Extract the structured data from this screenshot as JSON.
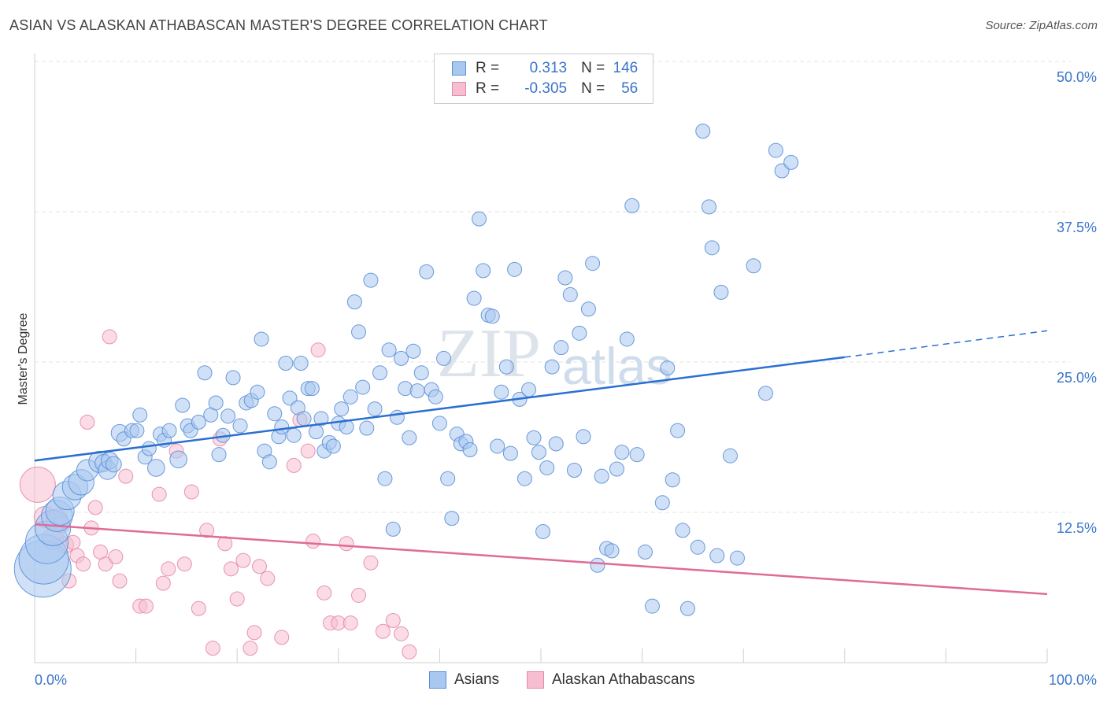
{
  "header": {
    "title": "ASIAN VS ALASKAN ATHABASCAN MASTER'S DEGREE CORRELATION CHART",
    "source": "Source: ZipAtlas.com"
  },
  "watermark": {
    "zip": "ZIP",
    "atlas": "atlas"
  },
  "legend": {
    "rows": [
      {
        "r_label": "R =",
        "r_value": "0.313",
        "n_label": "N =",
        "n_value": "146"
      },
      {
        "r_label": "R =",
        "r_value": "-0.305",
        "n_label": "N =",
        "n_value": "56"
      }
    ]
  },
  "chart_data": {
    "type": "scatter",
    "title": "ASIAN VS ALASKAN ATHABASCAN MASTER'S DEGREE CORRELATION CHART",
    "xlabel": "",
    "ylabel": "Master's Degree",
    "xlim": [
      0,
      100
    ],
    "ylim": [
      0,
      50
    ],
    "x_tick_labels": [
      "0.0%",
      "100.0%"
    ],
    "y_ticks": [
      12.5,
      25.0,
      37.5,
      50.0
    ],
    "y_tick_labels": [
      "12.5%",
      "25.0%",
      "37.5%",
      "50.0%"
    ],
    "grid": true,
    "legend_position": "top-center",
    "colors": {
      "asians_fill": "#a9c8f0",
      "asians_stroke": "#5b8fd6",
      "asians_line": "#2a6fd1",
      "alaskan_fill": "#f7bdd0",
      "alaskan_stroke": "#e589a7",
      "alaskan_line": "#e06a98",
      "axis_label": "#3a74c8"
    },
    "series": [
      {
        "name": "Asians",
        "r": 0.313,
        "n": 146,
        "trend": {
          "x": [
            0,
            80,
            100
          ],
          "y": [
            16.8,
            25.4,
            27.6
          ]
        },
        "points": [
          [
            0.8,
            7.8,
            4
          ],
          [
            0.9,
            8.6,
            3.5
          ],
          [
            1.2,
            10.0,
            3
          ],
          [
            1.8,
            11.2,
            2.5
          ],
          [
            2.2,
            12.2,
            2.2
          ],
          [
            2.5,
            12.6,
            2
          ],
          [
            3.2,
            13.9,
            2
          ],
          [
            4.0,
            14.6,
            1.8
          ],
          [
            4.6,
            15.0,
            1.8
          ],
          [
            5.2,
            16.0,
            1.5
          ],
          [
            6.4,
            16.7,
            1.5
          ],
          [
            6.8,
            16.6,
            1.2
          ],
          [
            7.2,
            16.0,
            1.3
          ],
          [
            7.4,
            16.8,
            1.2
          ],
          [
            7.8,
            16.5,
            1.1
          ],
          [
            8.4,
            19.1,
            1.2
          ],
          [
            8.8,
            18.6,
            1
          ],
          [
            9.6,
            19.3,
            1
          ],
          [
            10.1,
            19.3,
            1
          ],
          [
            10.4,
            20.6,
            1
          ],
          [
            10.9,
            17.1,
            1
          ],
          [
            11.3,
            17.8,
            1
          ],
          [
            12.0,
            16.2,
            1.2
          ],
          [
            12.4,
            19.0,
            1
          ],
          [
            12.8,
            18.5,
            1
          ],
          [
            13.3,
            19.3,
            1
          ],
          [
            14.2,
            16.9,
            1.2
          ],
          [
            14.6,
            21.4,
            1
          ],
          [
            15.1,
            19.7,
            1
          ],
          [
            15.4,
            19.3,
            1
          ],
          [
            16.2,
            20.0,
            1
          ],
          [
            16.8,
            24.1,
            1
          ],
          [
            17.4,
            20.6,
            1
          ],
          [
            17.9,
            21.6,
            1
          ],
          [
            18.2,
            17.3,
            1
          ],
          [
            18.6,
            18.9,
            1
          ],
          [
            19.1,
            20.5,
            1
          ],
          [
            19.6,
            23.7,
            1
          ],
          [
            20.3,
            19.7,
            1
          ],
          [
            20.9,
            21.6,
            1
          ],
          [
            21.4,
            21.8,
            1
          ],
          [
            22.0,
            22.5,
            1
          ],
          [
            22.4,
            26.9,
            1
          ],
          [
            22.7,
            17.6,
            1
          ],
          [
            23.2,
            16.7,
            1
          ],
          [
            23.7,
            20.7,
            1
          ],
          [
            24.1,
            18.8,
            1
          ],
          [
            24.4,
            19.6,
            1
          ],
          [
            24.8,
            24.9,
            1
          ],
          [
            25.2,
            22.0,
            1
          ],
          [
            25.6,
            18.9,
            1
          ],
          [
            26.0,
            21.2,
            1
          ],
          [
            26.3,
            24.9,
            1
          ],
          [
            26.6,
            20.3,
            1
          ],
          [
            27.0,
            22.8,
            1
          ],
          [
            27.4,
            22.8,
            1
          ],
          [
            27.8,
            19.2,
            1
          ],
          [
            28.3,
            20.3,
            1
          ],
          [
            28.6,
            17.6,
            1
          ],
          [
            29.1,
            18.3,
            1
          ],
          [
            29.5,
            18.0,
            1
          ],
          [
            30.0,
            19.9,
            1
          ],
          [
            30.3,
            21.1,
            1
          ],
          [
            30.8,
            19.6,
            1
          ],
          [
            31.2,
            22.1,
            1
          ],
          [
            31.6,
            30.0,
            1
          ],
          [
            32.0,
            27.5,
            1
          ],
          [
            32.4,
            22.9,
            1
          ],
          [
            32.8,
            19.5,
            1
          ],
          [
            33.2,
            31.8,
            1
          ],
          [
            33.6,
            21.1,
            1
          ],
          [
            34.1,
            24.1,
            1
          ],
          [
            34.6,
            15.3,
            1
          ],
          [
            35.0,
            26.0,
            1
          ],
          [
            35.4,
            11.1,
            1
          ],
          [
            35.8,
            20.4,
            1
          ],
          [
            36.2,
            25.3,
            1
          ],
          [
            36.6,
            22.8,
            1
          ],
          [
            37.0,
            18.7,
            1
          ],
          [
            37.4,
            25.9,
            1
          ],
          [
            37.8,
            22.6,
            1
          ],
          [
            38.2,
            24.1,
            1
          ],
          [
            38.7,
            32.5,
            1
          ],
          [
            39.2,
            22.7,
            1
          ],
          [
            39.6,
            22.1,
            1
          ],
          [
            40.0,
            19.9,
            1
          ],
          [
            40.4,
            25.3,
            1
          ],
          [
            40.8,
            15.3,
            1
          ],
          [
            41.2,
            12.0,
            1
          ],
          [
            41.7,
            19.0,
            1
          ],
          [
            42.1,
            18.2,
            1
          ],
          [
            42.6,
            18.4,
            1
          ],
          [
            43.0,
            17.7,
            1
          ],
          [
            43.4,
            30.3,
            1
          ],
          [
            43.9,
            36.9,
            1
          ],
          [
            44.3,
            32.6,
            1
          ],
          [
            44.8,
            28.9,
            1
          ],
          [
            45.2,
            28.8,
            1
          ],
          [
            45.7,
            18.0,
            1
          ],
          [
            46.1,
            22.5,
            1
          ],
          [
            46.6,
            24.6,
            1
          ],
          [
            47.0,
            17.4,
            1
          ],
          [
            47.4,
            32.7,
            1
          ],
          [
            47.9,
            21.9,
            1
          ],
          [
            48.4,
            15.3,
            1
          ],
          [
            48.8,
            22.7,
            1
          ],
          [
            49.3,
            18.7,
            1
          ],
          [
            49.8,
            17.5,
            1
          ],
          [
            50.2,
            10.9,
            1
          ],
          [
            50.6,
            16.2,
            1
          ],
          [
            51.1,
            24.6,
            1
          ],
          [
            51.5,
            18.2,
            1
          ],
          [
            52.0,
            26.2,
            1
          ],
          [
            52.4,
            32.0,
            1
          ],
          [
            52.9,
            30.6,
            1
          ],
          [
            53.3,
            16.0,
            1
          ],
          [
            53.8,
            27.4,
            1
          ],
          [
            54.2,
            18.8,
            1
          ],
          [
            54.7,
            29.4,
            1
          ],
          [
            55.1,
            33.2,
            1
          ],
          [
            55.6,
            8.1,
            1
          ],
          [
            56.0,
            15.5,
            1
          ],
          [
            56.5,
            9.5,
            1
          ],
          [
            57.0,
            9.3,
            1
          ],
          [
            57.5,
            16.1,
            1
          ],
          [
            58.0,
            17.5,
            1
          ],
          [
            58.5,
            26.9,
            1
          ],
          [
            59.0,
            38.0,
            1
          ],
          [
            59.5,
            17.3,
            1
          ],
          [
            60.3,
            9.2,
            1
          ],
          [
            61.0,
            4.7,
            1
          ],
          [
            62.0,
            13.3,
            1
          ],
          [
            62.5,
            24.5,
            1
          ],
          [
            63.0,
            15.2,
            1
          ],
          [
            63.5,
            19.3,
            1
          ],
          [
            64.0,
            11.0,
            1
          ],
          [
            64.5,
            4.5,
            1
          ],
          [
            65.5,
            9.6,
            1
          ],
          [
            66.0,
            44.2,
            1
          ],
          [
            66.6,
            37.9,
            1
          ],
          [
            66.9,
            34.5,
            1
          ],
          [
            67.4,
            8.9,
            1
          ],
          [
            67.8,
            30.8,
            1
          ],
          [
            68.7,
            17.2,
            1
          ],
          [
            69.4,
            8.7,
            1
          ],
          [
            71.0,
            33.0,
            1
          ],
          [
            72.2,
            22.4,
            1
          ],
          [
            73.2,
            42.6,
            1
          ],
          [
            73.8,
            40.9,
            1
          ],
          [
            74.7,
            41.6,
            1
          ]
        ]
      },
      {
        "name": "Alaskan Athabascans",
        "r": -0.305,
        "n": 56,
        "trend": {
          "x": [
            0,
            100
          ],
          "y": [
            11.5,
            5.7
          ]
        },
        "points": [
          [
            0.3,
            14.8,
            2.5
          ],
          [
            1.0,
            12.1,
            1.5
          ],
          [
            1.8,
            10.3,
            1.5
          ],
          [
            2.2,
            11.9,
            1.5
          ],
          [
            2.6,
            11.5,
            1.2
          ],
          [
            3.0,
            9.8,
            1.2
          ],
          [
            3.4,
            6.8,
            1
          ],
          [
            3.8,
            10.0,
            1
          ],
          [
            4.2,
            8.9,
            1
          ],
          [
            4.8,
            8.2,
            1
          ],
          [
            5.2,
            20.0,
            1
          ],
          [
            5.6,
            11.2,
            1
          ],
          [
            6.0,
            12.9,
            1
          ],
          [
            6.5,
            9.2,
            1
          ],
          [
            7.0,
            8.2,
            1
          ],
          [
            7.4,
            27.1,
            1
          ],
          [
            8.0,
            8.8,
            1
          ],
          [
            8.4,
            6.8,
            1
          ],
          [
            9.0,
            15.5,
            1
          ],
          [
            10.4,
            4.7,
            1
          ],
          [
            11.0,
            4.7,
            1
          ],
          [
            12.3,
            14.0,
            1
          ],
          [
            12.7,
            6.6,
            1
          ],
          [
            13.2,
            7.8,
            1
          ],
          [
            14.0,
            17.6,
            1
          ],
          [
            14.8,
            8.2,
            1
          ],
          [
            15.5,
            14.2,
            1
          ],
          [
            16.2,
            4.5,
            1
          ],
          [
            17.0,
            11.0,
            1
          ],
          [
            17.6,
            1.2,
            1
          ],
          [
            18.3,
            18.6,
            1
          ],
          [
            18.8,
            9.9,
            1
          ],
          [
            19.4,
            7.8,
            1
          ],
          [
            20.0,
            5.3,
            1
          ],
          [
            20.6,
            8.5,
            1
          ],
          [
            21.3,
            1.2,
            1
          ],
          [
            21.7,
            2.5,
            1
          ],
          [
            22.2,
            8.0,
            1
          ],
          [
            23.0,
            7.0,
            1
          ],
          [
            24.4,
            2.1,
            1
          ],
          [
            25.6,
            16.4,
            1
          ],
          [
            26.2,
            20.2,
            1
          ],
          [
            27.0,
            17.6,
            1
          ],
          [
            27.5,
            10.1,
            1
          ],
          [
            28.0,
            26.0,
            1
          ],
          [
            28.6,
            5.8,
            1
          ],
          [
            29.2,
            3.3,
            1
          ],
          [
            30.0,
            3.3,
            1
          ],
          [
            30.8,
            9.9,
            1
          ],
          [
            31.2,
            3.3,
            1
          ],
          [
            32.0,
            5.6,
            1
          ],
          [
            33.2,
            8.3,
            1
          ],
          [
            34.4,
            2.6,
            1
          ],
          [
            35.4,
            3.5,
            1
          ],
          [
            36.2,
            2.4,
            1
          ],
          [
            37.0,
            0.9,
            1
          ]
        ]
      }
    ]
  },
  "bottom_legend": [
    {
      "label": "Asians"
    },
    {
      "label": "Alaskan Athabascans"
    }
  ]
}
